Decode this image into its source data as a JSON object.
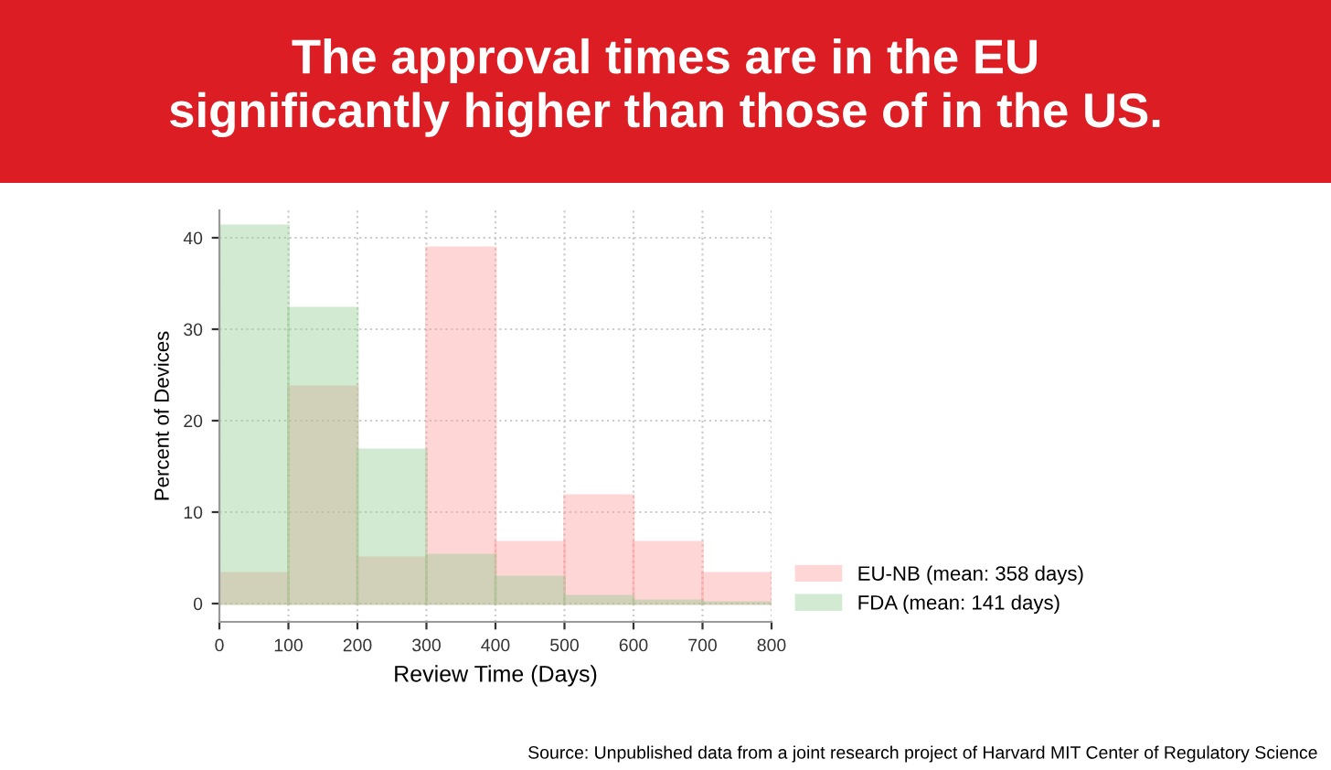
{
  "chart_data": {
    "type": "histogram",
    "title": "The approval times are in the EU\nsignificantly higher than those of in the US.",
    "xlabel": "Review Time (Days)",
    "ylabel": "Percent of Devices",
    "bins": [
      0,
      100,
      200,
      300,
      400,
      500,
      600,
      700,
      800
    ],
    "series": [
      {
        "name": "EU-NB (mean: 358 days)",
        "color": "#ff9a9a",
        "values": [
          3.3,
          23.7,
          5.0,
          38.9,
          6.7,
          11.8,
          6.7,
          3.3
        ]
      },
      {
        "name": "FDA (mean: 141 days)",
        "color": "#8fcc8f",
        "values": [
          41.3,
          32.3,
          16.8,
          5.3,
          2.9,
          0.8,
          0.3,
          0.1
        ]
      }
    ],
    "xlim": [
      0,
      800
    ],
    "xticks": [
      0,
      100,
      200,
      300,
      400,
      500,
      600,
      700,
      800
    ],
    "ylim": [
      -2,
      43
    ],
    "yticks": [
      0,
      10,
      20,
      30,
      40
    ],
    "grid": true,
    "legend": "right",
    "annotations": [
      "Source: Unpublished data from a joint research project of Harvard MIT Center of Regulatory Science"
    ]
  }
}
